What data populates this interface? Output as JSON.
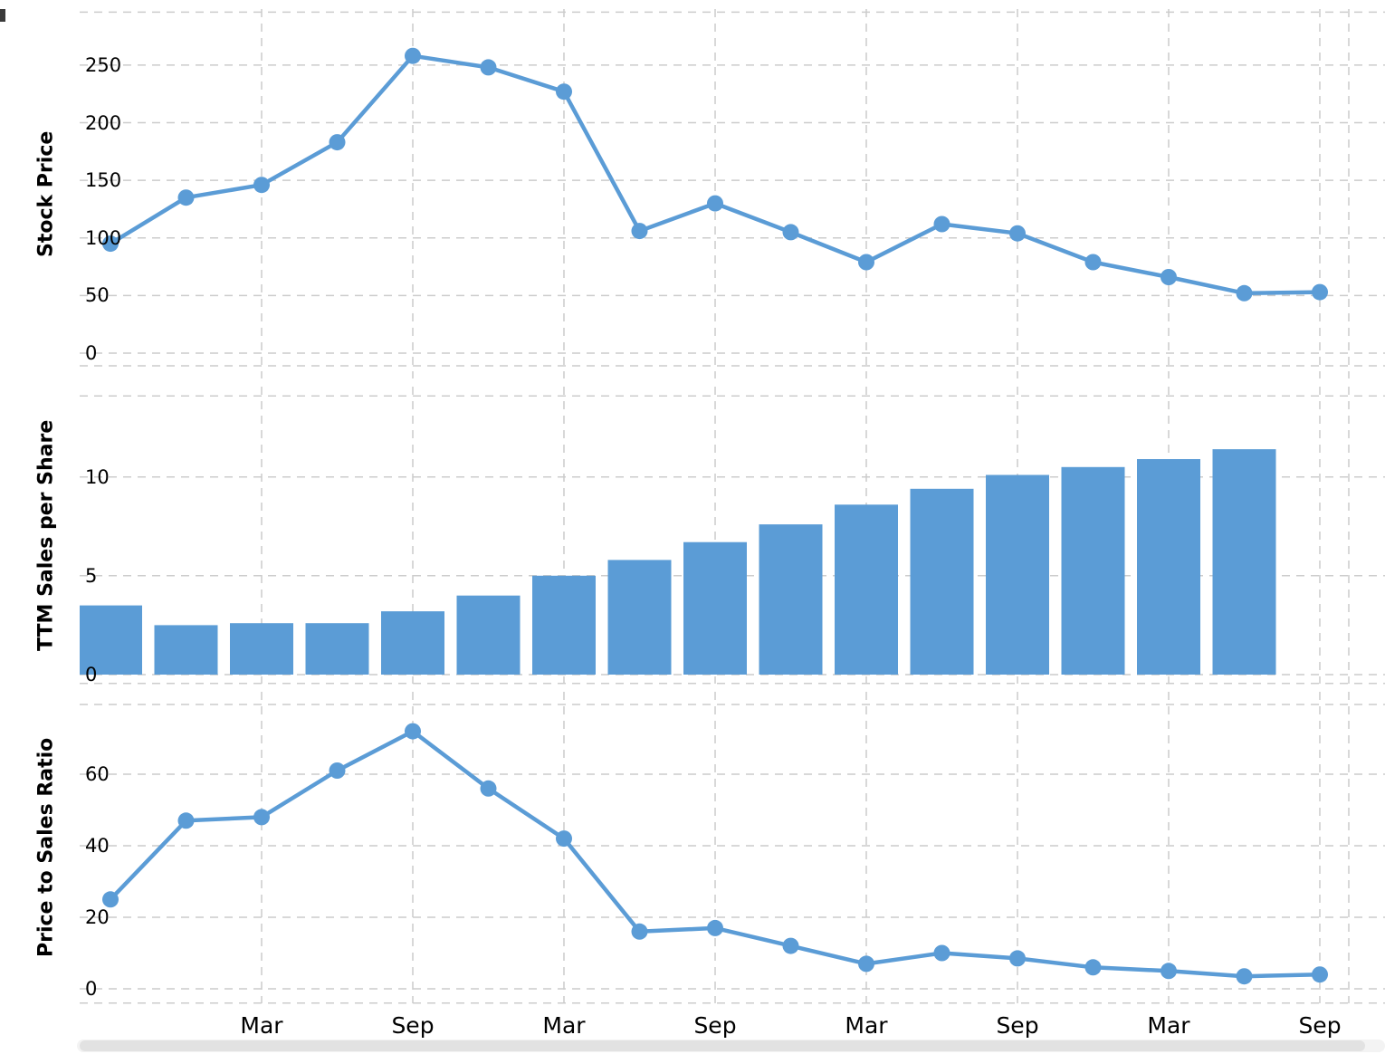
{
  "page": {
    "background": "#ffffff",
    "accent": "#5b9cd6",
    "grid_color": "#cccccc",
    "text_color": "#000000"
  },
  "x_axis": {
    "labels": [
      "Mar",
      "Sep",
      "Mar",
      "Sep",
      "Mar",
      "Sep",
      "Mar",
      "Sep"
    ],
    "label_indices": [
      2,
      4,
      6,
      8,
      10,
      12,
      14,
      16
    ]
  },
  "chart_data": [
    {
      "type": "line",
      "title": "",
      "ylabel": "Stock Price",
      "xlabel": "",
      "yticks": [
        0,
        50,
        100,
        150,
        200,
        250
      ],
      "grid_values": [
        -11,
        0,
        50,
        100,
        150,
        200,
        250,
        296
      ],
      "ylim": [
        0,
        290
      ],
      "grid": "dashed",
      "legend": "none",
      "values": [
        95,
        135,
        146,
        183,
        258,
        248,
        227,
        106,
        130,
        105,
        79,
        112,
        104,
        79,
        66,
        52,
        53
      ],
      "color": "#5b9cd6"
    },
    {
      "type": "bar",
      "title": "",
      "ylabel": "TTM Sales per Share",
      "xlabel": "",
      "yticks": [
        0,
        5,
        10
      ],
      "grid_values": [
        -0.45,
        0,
        5,
        10,
        14.1
      ],
      "ylim": [
        0,
        14.2
      ],
      "grid": "dashed",
      "legend": "none",
      "values": [
        3.5,
        2.5,
        2.6,
        2.6,
        3.2,
        4.0,
        5.0,
        5.8,
        6.7,
        7.6,
        8.6,
        9.4,
        10.1,
        10.5,
        10.9,
        11.4
      ],
      "color": "#5b9cd6"
    },
    {
      "type": "line",
      "title": "",
      "ylabel": "Price to Sales Ratio",
      "xlabel": "",
      "yticks": [
        0,
        20,
        40,
        60
      ],
      "grid_values": [
        -4,
        0,
        20,
        40,
        60,
        79.5
      ],
      "ylim": [
        0,
        80
      ],
      "grid": "dashed",
      "legend": "none",
      "values": [
        25,
        47,
        48,
        61,
        72,
        56,
        42,
        16,
        17,
        12,
        7,
        10,
        8.5,
        6,
        5,
        3.5,
        4
      ],
      "color": "#5b9cd6"
    }
  ]
}
